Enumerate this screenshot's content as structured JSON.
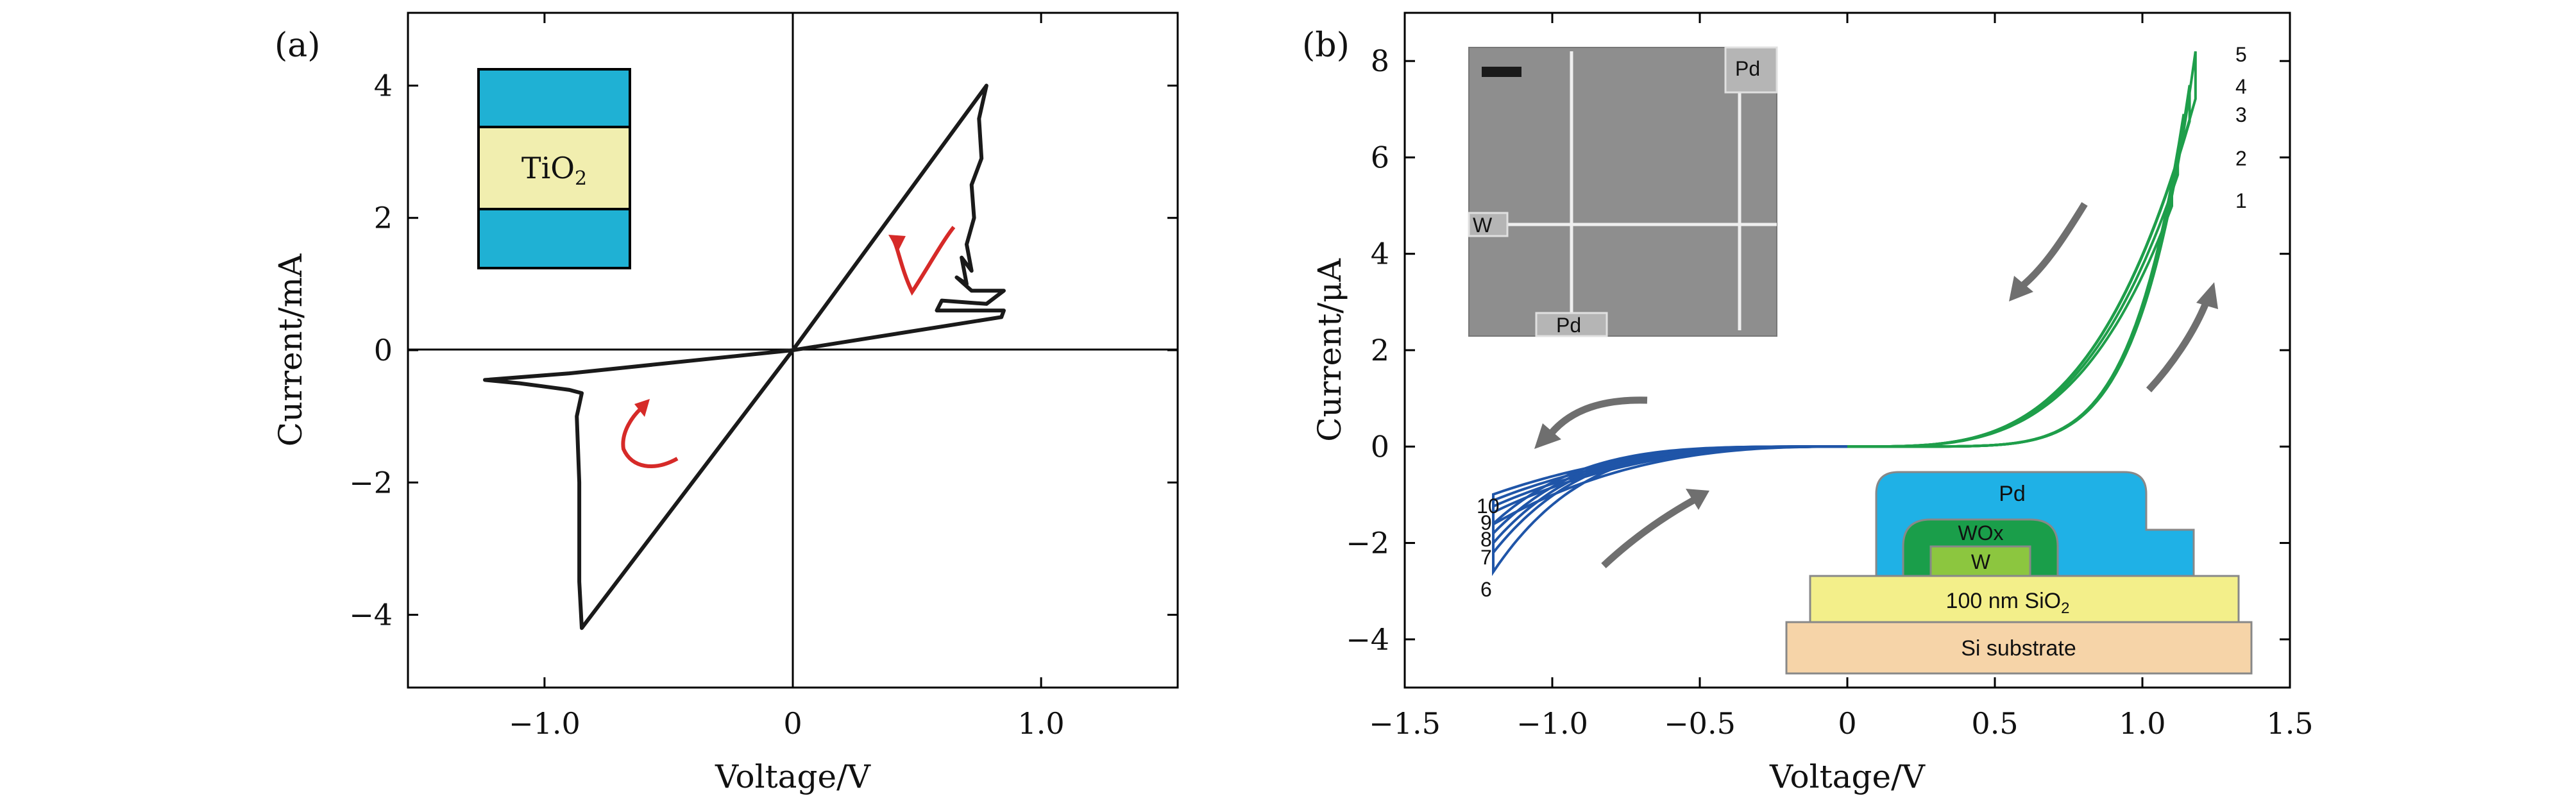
{
  "chart_data": [
    {
      "type": "line",
      "panel_label": "(a)",
      "xlabel": "Voltage/V",
      "ylabel": "Current/mA",
      "xlim": [
        -1.55,
        1.55
      ],
      "ylim": [
        -5.1,
        5.1
      ],
      "x_ticks": [
        -1.0,
        0,
        1.0
      ],
      "x_tick_labels": [
        "−1.0",
        "0",
        "1.0"
      ],
      "y_ticks": [
        -4,
        -2,
        0,
        2,
        4
      ],
      "y_tick_labels": [
        "−4",
        "−2",
        "0",
        "2",
        "4"
      ],
      "inset": {
        "type": "layer-stack",
        "layer_label": "TiO",
        "layer_subscript": "2",
        "colors": {
          "electrode": "#1fb1d4",
          "oxide": "#f1eeaf"
        }
      },
      "series": [
        {
          "name": "I-V hysteresis loop",
          "color": "#1a1a1a",
          "x": [
            0,
            0.78,
            0.75,
            0.76,
            0.72,
            0.73,
            0.7,
            0.72,
            0.68,
            0.7,
            0.66,
            0.72,
            0.85,
            0.78,
            0.6,
            0.58,
            0.63,
            0.85,
            0.84,
            0,
            -0.85,
            -0.86,
            -0.86,
            -0.87,
            -0.85,
            -0.9,
            -1.0,
            -1.1,
            -1.24,
            -0.9,
            0
          ],
          "y": [
            0,
            4.0,
            3.5,
            2.9,
            2.5,
            2.0,
            1.6,
            1.2,
            1.4,
            1.0,
            1.1,
            0.9,
            0.9,
            0.7,
            0.75,
            0.6,
            0.6,
            0.6,
            0.5,
            0,
            -4.2,
            -3.5,
            -2.0,
            -1.0,
            -0.65,
            -0.6,
            -0.55,
            -0.5,
            -0.45,
            -0.35,
            0
          ]
        }
      ],
      "arrows": [
        {
          "color": "#d62a28",
          "direction": "counter-clockwise"
        },
        {
          "color": "#d62a28",
          "direction": "counter-clockwise"
        }
      ]
    },
    {
      "type": "line",
      "panel_label": "(b)",
      "xlabel": "Voltage/V",
      "ylabel": "Current/μA",
      "xlim": [
        -1.5,
        1.5
      ],
      "ylim": [
        -5,
        9
      ],
      "x_ticks": [
        -1.5,
        -1.0,
        -0.5,
        0,
        0.5,
        1.0,
        1.5
      ],
      "x_tick_labels": [
        "−1.5",
        "−1.0",
        "−0.5",
        "0",
        "0.5",
        "1.0",
        "1.5"
      ],
      "y_ticks": [
        -4,
        -2,
        0,
        2,
        4,
        6,
        8
      ],
      "y_tick_labels": [
        "−4",
        "−2",
        "0",
        "2",
        "4",
        "6",
        "8"
      ],
      "positive_sweeps": {
        "color": "#1e9e4a",
        "curve_labels": [
          "1",
          "2",
          "3",
          "4",
          "5"
        ],
        "peak_current": [
          5.2,
          6.0,
          6.9,
          7.5,
          8.2
        ],
        "max_voltage": 1.18
      },
      "negative_sweeps": {
        "color": "#1f55a8",
        "curve_labels": [
          "10",
          "9",
          "8",
          "7",
          "6"
        ],
        "min_current": [
          -1.6,
          -1.8,
          -2.0,
          -2.2,
          -2.6
        ],
        "min_voltage": -1.2
      },
      "sem_inset": {
        "labels": [
          "Pd",
          "W",
          "Pd"
        ]
      },
      "device_inset": {
        "layers": [
          "Pd",
          "WOx",
          "W",
          "100 nm SiO",
          "Si substrate"
        ],
        "sio2_subscript": "2",
        "colors": {
          "Pd": "#1fb1e6",
          "WOx": "#1a9e4a",
          "W": "#8cc63f",
          "SiO2": "#f3ef8a",
          "substrate": "#f6d4a8"
        }
      }
    }
  ]
}
